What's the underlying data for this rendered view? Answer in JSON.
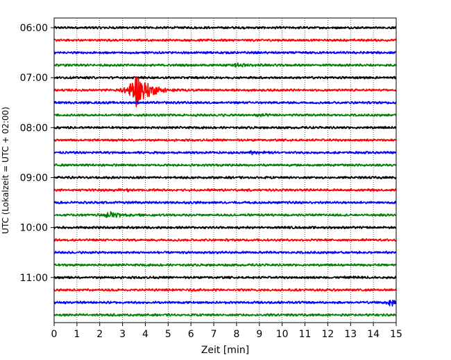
{
  "chart_data": {
    "type": "line",
    "title": "",
    "xlabel": "Zeit  [min]",
    "ylabel": "UTC (Lokalzeit = UTC + 02:00)",
    "xlim": [
      0,
      15
    ],
    "x_ticks": [
      0,
      1,
      2,
      3,
      4,
      5,
      6,
      7,
      8,
      9,
      10,
      11,
      12,
      13,
      14,
      15
    ],
    "x_tick_labels": [
      "0",
      "1",
      "2",
      "3",
      "4",
      "5",
      "6",
      "7",
      "8",
      "9",
      "10",
      "11",
      "12",
      "13",
      "14",
      "15"
    ],
    "y_tick_labels": [
      "06:00",
      "07:00",
      "08:00",
      "09:00",
      "10:00",
      "11:00"
    ],
    "y_tick_rows": [
      0,
      4,
      8,
      12,
      16,
      20
    ],
    "grid": "vertical dotted",
    "line_colors": [
      "#000000",
      "#ff0000",
      "#0000ff",
      "#008000"
    ],
    "traces": [
      {
        "start": "06:00",
        "color": "#000000",
        "events": []
      },
      {
        "start": "06:15",
        "color": "#ff0000",
        "events": []
      },
      {
        "start": "06:30",
        "color": "#0000ff",
        "events": []
      },
      {
        "start": "06:45",
        "color": "#008000",
        "events": [
          {
            "t": 8.1,
            "amp": 0.3
          }
        ]
      },
      {
        "start": "07:00",
        "color": "#000000",
        "events": []
      },
      {
        "start": "07:15",
        "color": "#ff0000",
        "events": [
          {
            "t": 3.6,
            "amp": 2.7,
            "note": "earthquake"
          }
        ]
      },
      {
        "start": "07:30",
        "color": "#0000ff",
        "events": []
      },
      {
        "start": "07:45",
        "color": "#008000",
        "events": [
          {
            "t": 8.8,
            "amp": 0.2
          }
        ]
      },
      {
        "start": "08:00",
        "color": "#000000",
        "events": []
      },
      {
        "start": "08:15",
        "color": "#ff0000",
        "events": []
      },
      {
        "start": "08:30",
        "color": "#0000ff",
        "events": [
          {
            "t": 8.7,
            "amp": 0.2
          }
        ]
      },
      {
        "start": "08:45",
        "color": "#008000",
        "events": []
      },
      {
        "start": "09:00",
        "color": "#000000",
        "events": []
      },
      {
        "start": "09:15",
        "color": "#ff0000",
        "events": [
          {
            "t": 2.8,
            "amp": 0.2
          }
        ]
      },
      {
        "start": "09:30",
        "color": "#0000ff",
        "events": []
      },
      {
        "start": "09:45",
        "color": "#008000",
        "events": [
          {
            "t": 2.5,
            "amp": 0.5
          }
        ]
      },
      {
        "start": "10:00",
        "color": "#000000",
        "events": []
      },
      {
        "start": "10:15",
        "color": "#ff0000",
        "events": []
      },
      {
        "start": "10:30",
        "color": "#0000ff",
        "events": []
      },
      {
        "start": "10:45",
        "color": "#008000",
        "events": []
      },
      {
        "start": "11:00",
        "color": "#000000",
        "events": [
          {
            "t": 13.1,
            "amp": 0.2
          }
        ]
      },
      {
        "start": "11:15",
        "color": "#ff0000",
        "events": []
      },
      {
        "start": "11:30",
        "color": "#0000ff",
        "events": [
          {
            "t": 14.8,
            "amp": 0.5
          }
        ]
      },
      {
        "start": "11:45",
        "color": "#008000",
        "events": []
      }
    ]
  }
}
